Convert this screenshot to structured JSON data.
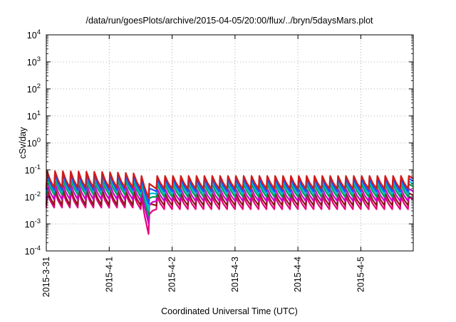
{
  "chart_data": {
    "type": "line",
    "title": "/data/run/goesPlots/archive/2015-04-05/20:00/flux/../bryn/5daysMars.plot",
    "xlabel": "Coordinated Universal Time (UTC)",
    "ylabel": "cSv/day",
    "y_scale": "log",
    "ylim": [
      0.0001,
      10000
    ],
    "y_ticks": [
      {
        "value": 0.0001,
        "base": "10",
        "exp": "-4"
      },
      {
        "value": 0.001,
        "base": "10",
        "exp": "-3"
      },
      {
        "value": 0.01,
        "base": "10",
        "exp": "-2"
      },
      {
        "value": 0.1,
        "base": "10",
        "exp": "-1"
      },
      {
        "value": 1,
        "base": "10",
        "exp": "0"
      },
      {
        "value": 10,
        "base": "10",
        "exp": "1"
      },
      {
        "value": 100,
        "base": "10",
        "exp": "2"
      },
      {
        "value": 1000,
        "base": "10",
        "exp": "3"
      },
      {
        "value": 10000,
        "base": "10",
        "exp": "4"
      }
    ],
    "x_range": [
      "2015-03-31 00:00",
      "2015-04-05 20:00"
    ],
    "x_ticks": [
      "2015-3-31",
      "2015-4-1",
      "2015-4-2",
      "2015-4-3",
      "2015-4-4",
      "2015-4-5"
    ],
    "grid": true,
    "legend": "none",
    "pattern": {
      "period_hours": 3,
      "jump_hours": 0.3,
      "flat_until": "2015-04-01 12:00",
      "dip": {
        "center": "2015-04-01 15:00",
        "width_hours": 2.5,
        "factor": 0.12
      }
    },
    "series": [
      {
        "color": "#e6007e",
        "high": 0.01,
        "low": 0.0035,
        "early_peak": 0.015,
        "early_low": 0.004,
        "dip_factor": 0.12
      },
      {
        "color": "#8b1a1a",
        "high": 0.014,
        "low": 0.0048,
        "early_peak": 0.02,
        "early_low": 0.005,
        "dip_factor": 0.3
      },
      {
        "color": "#cc00cc",
        "high": 0.02,
        "low": 0.007,
        "early_peak": 0.03,
        "early_low": 0.008,
        "dip_factor": 0.15
      },
      {
        "color": "#00a050",
        "high": 0.03,
        "low": 0.01,
        "early_peak": 0.045,
        "early_low": 0.012,
        "dip_factor": 0.2
      },
      {
        "color": "#00bcd4",
        "high": 0.038,
        "low": 0.013,
        "early_peak": 0.06,
        "early_low": 0.015,
        "dip_factor": 0.25
      },
      {
        "color": "#1a4fff",
        "high": 0.048,
        "low": 0.016,
        "early_peak": 0.07,
        "early_low": 0.018,
        "dip_factor": 0.35
      },
      {
        "color": "#d11a1a",
        "high": 0.06,
        "low": 0.02,
        "early_peak": 0.09,
        "early_low": 0.022,
        "dip_factor": 0.45
      }
    ]
  }
}
